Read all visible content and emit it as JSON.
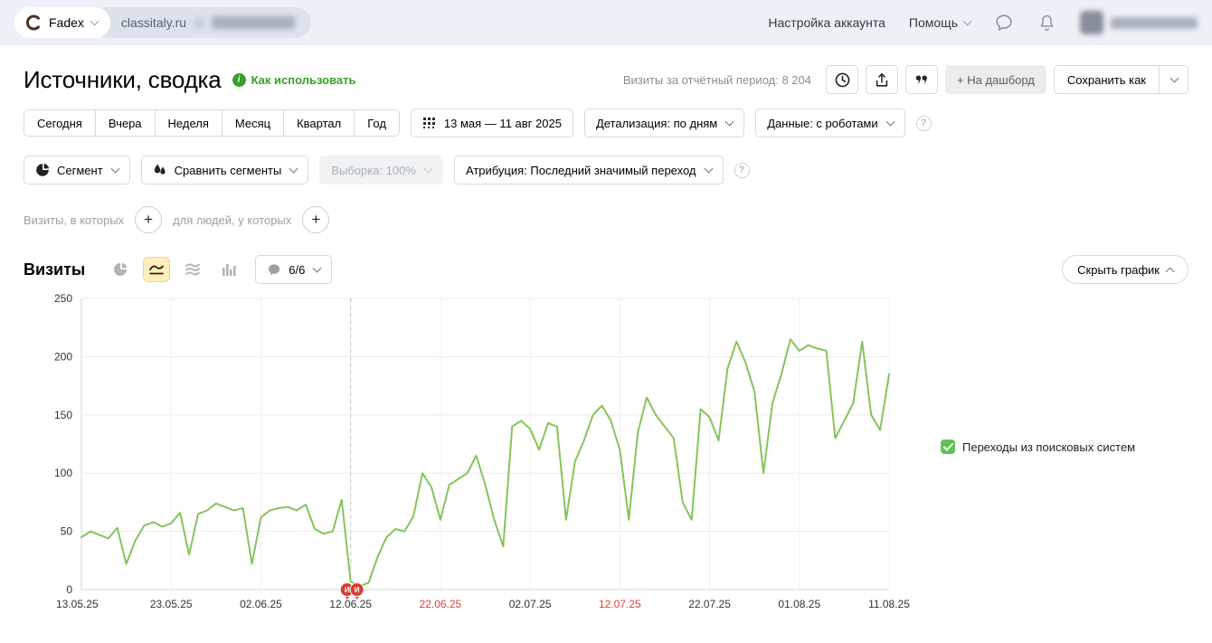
{
  "topbar": {
    "counter_name": "Fadex",
    "site": "classitaly.ru",
    "account_settings": "Настройка аккаунта",
    "help": "Помощь"
  },
  "header": {
    "title": "Источники, сводка",
    "how_to_use": "Как использовать",
    "visits_period_label": "Визиты за отчётный период:",
    "visits_period_value": "8 204",
    "to_dashboard": "+ На дашборд",
    "save_as": "Сохранить как"
  },
  "filters": {
    "period_tabs": [
      "Сегодня",
      "Вчера",
      "Неделя",
      "Месяц",
      "Квартал",
      "Год"
    ],
    "date_range": "13 мая — 11 авг 2025",
    "detalization": "Детализация: по дням",
    "data_mode": "Данные: с роботами",
    "segment": "Сегмент",
    "compare_segments": "Сравнить сегменты",
    "sampling": "Выборка: 100%",
    "attribution": "Атрибуция: Последний значимый переход",
    "visits_condition": "Визиты, в которых",
    "people_condition": "для людей, у которых"
  },
  "chart_toolbar": {
    "title": "Визиты",
    "comments_count": "6/6",
    "hide_chart": "Скрыть график"
  },
  "legend": {
    "label": "Переходы из поисковых систем",
    "checked": true
  },
  "icons": {
    "question": "?",
    "info": "i"
  },
  "colors": {
    "accent_green": "#36a126",
    "line_green": "#84c55a",
    "legend_green": "#5fc254",
    "red_label": "#d9443a",
    "marker_red": "#d23f31",
    "selected_icon_bg": "#ffeeba"
  },
  "chart_data": {
    "type": "line",
    "title": "Визиты",
    "xlabel": "",
    "ylabel": "",
    "ylim": [
      0,
      250
    ],
    "yticks": [
      0,
      50,
      100,
      150,
      200,
      250
    ],
    "grid": true,
    "days_total": 90,
    "legend_position": "right",
    "series": [
      {
        "name": "Переходы из поисковых систем",
        "color": "#84c55a",
        "values": [
          45,
          50,
          47,
          44,
          53,
          22,
          42,
          55,
          58,
          54,
          57,
          66,
          30,
          65,
          68,
          74,
          71,
          68,
          70,
          22,
          62,
          68,
          70,
          71,
          68,
          73,
          52,
          48,
          50,
          77,
          7,
          3,
          6,
          28,
          45,
          52,
          50,
          63,
          100,
          88,
          60,
          90,
          95,
          100,
          115,
          90,
          60,
          37,
          140,
          145,
          138,
          120,
          143,
          140,
          60,
          110,
          128,
          150,
          158,
          145,
          120,
          60,
          135,
          165,
          150,
          140,
          130,
          75,
          60,
          155,
          148,
          128,
          190,
          213,
          195,
          170,
          100,
          160,
          185,
          215,
          205,
          210,
          207,
          205,
          130,
          145,
          160,
          213,
          150,
          137,
          185
        ]
      }
    ],
    "xticks": [
      {
        "label": "13.05.25",
        "day": 0,
        "red": false
      },
      {
        "label": "23.05.25",
        "day": 10,
        "red": false
      },
      {
        "label": "02.06.25",
        "day": 20,
        "red": false
      },
      {
        "label": "12.06.25",
        "day": 30,
        "red": false
      },
      {
        "label": "22.06.25",
        "day": 40,
        "red": true
      },
      {
        "label": "02.07.25",
        "day": 50,
        "red": false
      },
      {
        "label": "12.07.25",
        "day": 60,
        "red": true
      },
      {
        "label": "22.07.25",
        "day": 70,
        "red": false
      },
      {
        "label": "01.08.25",
        "day": 80,
        "red": false
      },
      {
        "label": "11.08.25",
        "day": 90,
        "red": false
      }
    ],
    "annotation": {
      "dashed_line_day": 30,
      "markers": [
        {
          "day": 29.6,
          "letter": "И"
        },
        {
          "day": 30.7,
          "letter": "И"
        }
      ]
    }
  }
}
